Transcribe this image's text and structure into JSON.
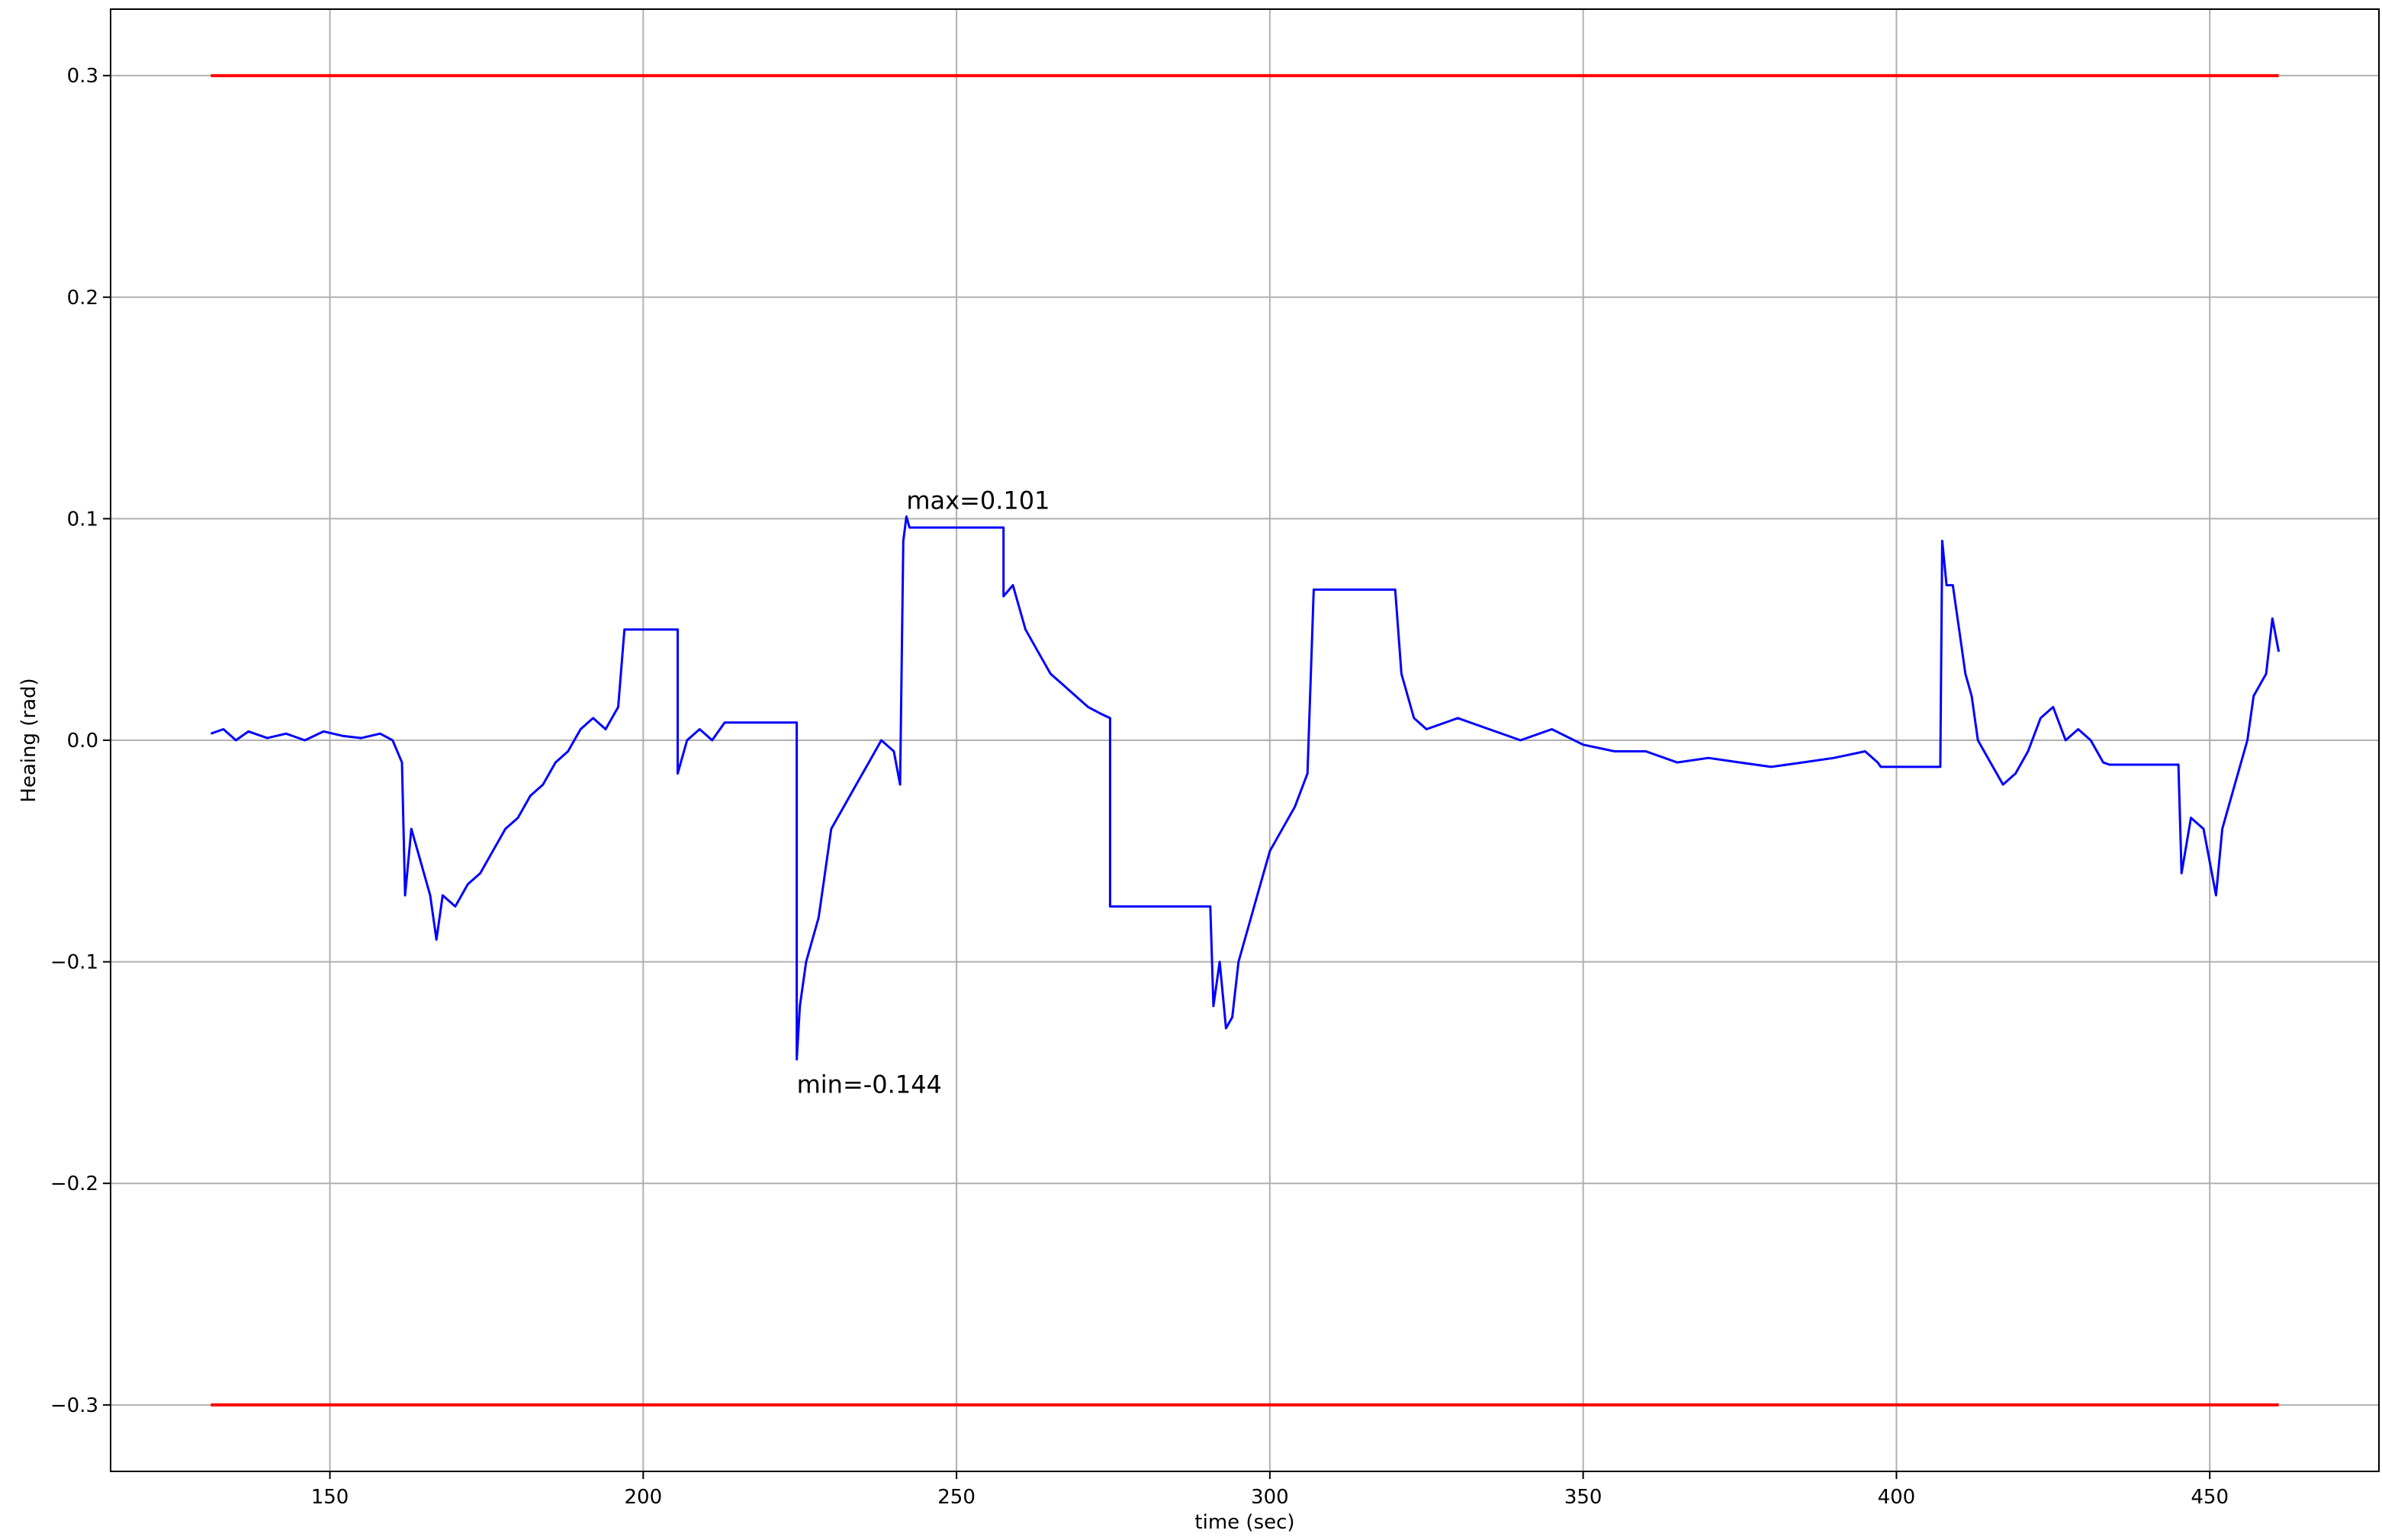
{
  "chart_data": {
    "type": "line",
    "x_label": "time (sec)",
    "y_label": "Heaing (rad)",
    "xlim": [
      115,
      477
    ],
    "ylim": [
      -0.33,
      0.33
    ],
    "xticks": [
      150,
      200,
      250,
      300,
      350,
      400,
      450
    ],
    "yticks": [
      {
        "value": -0.3,
        "label": "−0.3"
      },
      {
        "value": -0.2,
        "label": "−0.2"
      },
      {
        "value": -0.1,
        "label": "−0.1"
      },
      {
        "value": 0,
        "label": "0.0"
      },
      0.1,
      0.2,
      0.3
    ],
    "grid": true,
    "series": [
      {
        "color": "#0000ff",
        "x": [
          131,
          133,
          135,
          137,
          140,
          143,
          146,
          149,
          152,
          155,
          158,
          160,
          161.5,
          162,
          163,
          164,
          165,
          166,
          167,
          168,
          170,
          172,
          174,
          176,
          178,
          180,
          182,
          184,
          186,
          188,
          190,
          192,
          194,
          196,
          197,
          205.5,
          205.5,
          207,
          209,
          211,
          213,
          224.5,
          224.5,
          225,
          226,
          228,
          229,
          230,
          232,
          234,
          236,
          238,
          240,
          241,
          241.5,
          242,
          242.5,
          257.5,
          257.5,
          259,
          261,
          263,
          265,
          267,
          269,
          271,
          273,
          274.5,
          274.5,
          290.5,
          291,
          292,
          293,
          294,
          295,
          296,
          297,
          298,
          300,
          302,
          304,
          306,
          307,
          320,
          321,
          323,
          325,
          330,
          335,
          340,
          345,
          350,
          355,
          360,
          365,
          370,
          375,
          380,
          385,
          390,
          395,
          397,
          397.5,
          407,
          407.3,
          408,
          409,
          410,
          411,
          412,
          413,
          415,
          417,
          419,
          421,
          423,
          425,
          427,
          429,
          431,
          433,
          434,
          445,
          445.5,
          447,
          449,
          451,
          452,
          454,
          456,
          457,
          459,
          460,
          461
        ],
        "values": [
          0.003,
          0.005,
          0.0,
          0.004,
          0.001,
          0.003,
          0.0,
          0.004,
          0.002,
          0.001,
          0.003,
          0.0,
          -0.01,
          -0.07,
          -0.04,
          -0.05,
          -0.06,
          -0.07,
          -0.09,
          -0.07,
          -0.075,
          -0.065,
          -0.06,
          -0.05,
          -0.04,
          -0.035,
          -0.025,
          -0.02,
          -0.01,
          -0.005,
          0.005,
          0.01,
          0.005,
          0.015,
          0.05,
          0.05,
          -0.015,
          0.0,
          0.005,
          0.0,
          0.008,
          0.008,
          -0.144,
          -0.12,
          -0.1,
          -0.08,
          -0.06,
          -0.04,
          -0.03,
          -0.02,
          -0.01,
          0.0,
          -0.005,
          -0.02,
          0.09,
          0.101,
          0.096,
          0.096,
          0.065,
          0.07,
          0.05,
          0.04,
          0.03,
          0.025,
          0.02,
          0.015,
          0.012,
          0.01,
          -0.075,
          -0.075,
          -0.12,
          -0.1,
          -0.13,
          -0.125,
          -0.1,
          -0.09,
          -0.08,
          -0.07,
          -0.05,
          -0.04,
          -0.03,
          -0.015,
          0.068,
          0.068,
          0.03,
          0.01,
          0.005,
          0.01,
          0.005,
          0.0,
          0.005,
          -0.002,
          -0.005,
          -0.005,
          -0.01,
          -0.008,
          -0.01,
          -0.012,
          -0.01,
          -0.008,
          -0.005,
          -0.01,
          -0.012,
          -0.012,
          0.09,
          0.07,
          0.07,
          0.05,
          0.03,
          0.02,
          0.0,
          -0.01,
          -0.02,
          -0.015,
          -0.005,
          0.01,
          0.015,
          0.0,
          0.005,
          0.0,
          -0.01,
          -0.011,
          -0.011,
          -0.06,
          -0.035,
          -0.04,
          -0.07,
          -0.04,
          -0.02,
          0.0,
          0.02,
          0.03,
          0.055,
          0.04
        ]
      },
      {
        "color": "#ff0000",
        "x": [
          131,
          461
        ],
        "values": [
          0.3,
          0.3
        ]
      },
      {
        "color": "#ff0000",
        "x": [
          131,
          461
        ],
        "values": [
          -0.3,
          -0.3
        ]
      }
    ],
    "annotations": [
      {
        "text": "max=0.101",
        "x": 242,
        "y": 0.101
      },
      {
        "text": "min=-0.144",
        "x": 224.5,
        "y": -0.144
      }
    ]
  }
}
